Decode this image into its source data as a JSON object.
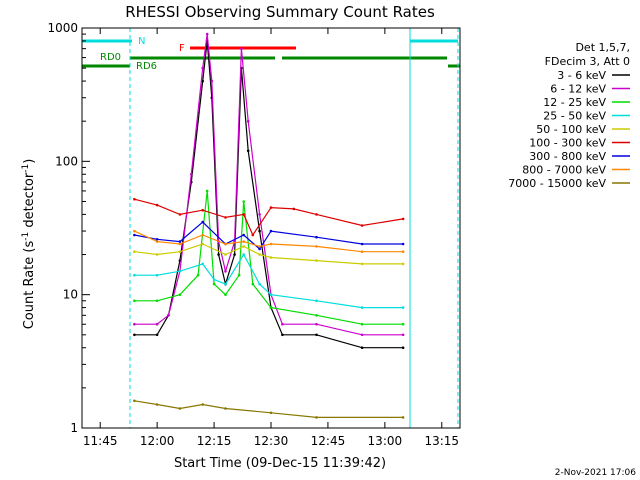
{
  "chart_data": {
    "type": "line",
    "title": "RHESSI Observing Summary Count Rates",
    "xlabel": "Start Time (09-Dec-15 11:39:42)",
    "ylabel_main": "Count Rate (s",
    "ylabel_sup1": "-1",
    "ylabel_mid": " detector",
    "ylabel_sup2": "-1",
    "ylabel_end": ")",
    "y_scale": "log",
    "ylim": [
      1,
      1000
    ],
    "xlim_minutes": [
      11.67,
      13.33
    ],
    "x_ticks": [
      {
        "label": "11:45",
        "t": 11.75
      },
      {
        "label": "12:00",
        "t": 12.0
      },
      {
        "label": "12:15",
        "t": 12.25
      },
      {
        "label": "12:30",
        "t": 12.5
      },
      {
        "label": "12:45",
        "t": 12.75
      },
      {
        "label": "13:00",
        "t": 13.0
      },
      {
        "label": "13:15",
        "t": 13.25
      }
    ],
    "y_ticks": [
      {
        "label": "1",
        "v": 1
      },
      {
        "label": "10",
        "v": 10
      },
      {
        "label": "100",
        "v": 100
      },
      {
        "label": "1000",
        "v": 1000
      }
    ],
    "legend_header": [
      "Det 1,5,7,",
      "FDecim 3, Att 0"
    ],
    "series": [
      {
        "name": "3 - 6 keV",
        "color": "#000000",
        "points": [
          [
            11.9,
            5
          ],
          [
            12.0,
            5
          ],
          [
            12.05,
            7
          ],
          [
            12.1,
            18
          ],
          [
            12.15,
            70
          ],
          [
            12.2,
            400
          ],
          [
            12.22,
            800
          ],
          [
            12.24,
            300
          ],
          [
            12.27,
            20
          ],
          [
            12.3,
            12
          ],
          [
            12.34,
            20
          ],
          [
            12.37,
            500
          ],
          [
            12.4,
            120
          ],
          [
            12.45,
            30
          ],
          [
            12.5,
            8
          ],
          [
            12.55,
            5
          ],
          [
            12.7,
            5
          ],
          [
            12.9,
            4
          ],
          [
            13.08,
            4
          ]
        ]
      },
      {
        "name": "6 - 12 keV",
        "color": "#cc00cc",
        "points": [
          [
            11.9,
            6
          ],
          [
            12.0,
            6
          ],
          [
            12.05,
            7
          ],
          [
            12.1,
            15
          ],
          [
            12.15,
            80
          ],
          [
            12.2,
            500
          ],
          [
            12.22,
            900
          ],
          [
            12.24,
            400
          ],
          [
            12.27,
            25
          ],
          [
            12.3,
            15
          ],
          [
            12.34,
            25
          ],
          [
            12.37,
            700
          ],
          [
            12.4,
            200
          ],
          [
            12.45,
            40
          ],
          [
            12.5,
            10
          ],
          [
            12.55,
            6
          ],
          [
            12.7,
            6
          ],
          [
            12.9,
            5
          ],
          [
            13.08,
            5
          ]
        ]
      },
      {
        "name": "12 - 25 keV",
        "color": "#00dd00",
        "points": [
          [
            11.9,
            9
          ],
          [
            12.0,
            9
          ],
          [
            12.1,
            10
          ],
          [
            12.18,
            14
          ],
          [
            12.22,
            60
          ],
          [
            12.25,
            12
          ],
          [
            12.3,
            10
          ],
          [
            12.36,
            14
          ],
          [
            12.38,
            50
          ],
          [
            12.42,
            12
          ],
          [
            12.5,
            8
          ],
          [
            12.7,
            7
          ],
          [
            12.9,
            6
          ],
          [
            13.08,
            6
          ]
        ]
      },
      {
        "name": "25 - 50 keV",
        "color": "#00dddd",
        "points": [
          [
            11.9,
            14
          ],
          [
            12.0,
            14
          ],
          [
            12.1,
            15
          ],
          [
            12.2,
            17
          ],
          [
            12.25,
            13
          ],
          [
            12.3,
            12
          ],
          [
            12.38,
            20
          ],
          [
            12.45,
            12
          ],
          [
            12.5,
            10
          ],
          [
            12.7,
            9
          ],
          [
            12.9,
            8
          ],
          [
            13.08,
            8
          ]
        ]
      },
      {
        "name": "50 - 100 keV",
        "color": "#cccc00",
        "points": [
          [
            11.9,
            21
          ],
          [
            12.0,
            20
          ],
          [
            12.1,
            21
          ],
          [
            12.2,
            24
          ],
          [
            12.3,
            20
          ],
          [
            12.38,
            23
          ],
          [
            12.45,
            20
          ],
          [
            12.5,
            19
          ],
          [
            12.7,
            18
          ],
          [
            12.9,
            17
          ],
          [
            13.08,
            17
          ]
        ]
      },
      {
        "name": "100 - 300 keV",
        "color": "#dd0000",
        "points": [
          [
            11.9,
            52
          ],
          [
            12.0,
            47
          ],
          [
            12.1,
            40
          ],
          [
            12.2,
            43
          ],
          [
            12.3,
            38
          ],
          [
            12.38,
            40
          ],
          [
            12.42,
            28
          ],
          [
            12.5,
            45
          ],
          [
            12.6,
            44
          ],
          [
            12.7,
            40
          ],
          [
            12.9,
            33
          ],
          [
            13.08,
            37
          ]
        ]
      },
      {
        "name": "300 - 800 keV",
        "color": "#0000dd",
        "points": [
          [
            11.9,
            28
          ],
          [
            12.0,
            26
          ],
          [
            12.1,
            25
          ],
          [
            12.2,
            35
          ],
          [
            12.3,
            24
          ],
          [
            12.38,
            28
          ],
          [
            12.45,
            22
          ],
          [
            12.5,
            30
          ],
          [
            12.7,
            27
          ],
          [
            12.9,
            24
          ],
          [
            13.08,
            24
          ]
        ]
      },
      {
        "name": "800 - 7000 keV",
        "color": "#ff8800",
        "points": [
          [
            11.9,
            30
          ],
          [
            12.0,
            25
          ],
          [
            12.1,
            24
          ],
          [
            12.2,
            28
          ],
          [
            12.3,
            24
          ],
          [
            12.38,
            25
          ],
          [
            12.45,
            23
          ],
          [
            12.5,
            24
          ],
          [
            12.7,
            23
          ],
          [
            12.9,
            21
          ],
          [
            13.08,
            21
          ]
        ]
      },
      {
        "name": "7000 - 15000 keV",
        "color": "#887700",
        "points": [
          [
            11.9,
            1.6
          ],
          [
            12.0,
            1.5
          ],
          [
            12.1,
            1.4
          ],
          [
            12.2,
            1.5
          ],
          [
            12.3,
            1.4
          ],
          [
            12.5,
            1.3
          ],
          [
            12.7,
            1.2
          ],
          [
            13.08,
            1.2
          ]
        ]
      }
    ],
    "annotations": [
      {
        "label": "N",
        "color": "#00dddd"
      },
      {
        "label": "F",
        "color": "#ff0000"
      },
      {
        "label": "RD0",
        "color": "#008800"
      },
      {
        "label": "RD6",
        "color": "#008800"
      }
    ],
    "timestamp": "2-Nov-2021 17:06"
  }
}
